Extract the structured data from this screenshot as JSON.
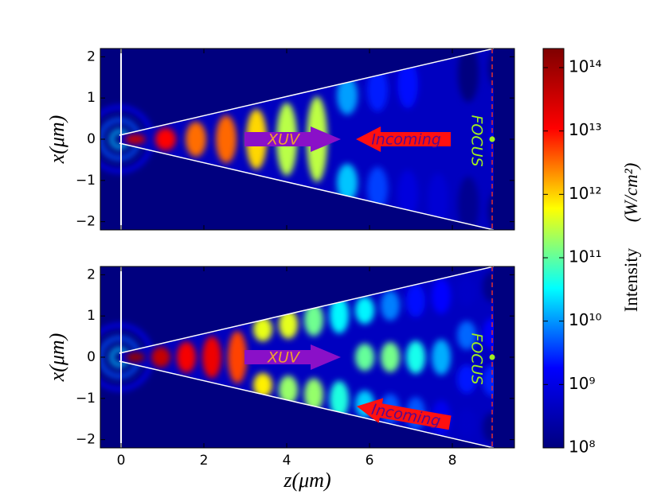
{
  "chart_data": [
    {
      "type": "heatmap",
      "ylabel": "x(μm)",
      "xlim": [
        -0.5,
        9.5
      ],
      "ylim": [
        -2.2,
        2.2
      ],
      "xticks": [
        0,
        2,
        4,
        6,
        8
      ],
      "yticks": [
        {
          "value": -2,
          "label": "−2"
        },
        {
          "value": -1,
          "label": "−1"
        },
        0,
        1,
        2
      ],
      "annotations": [
        "XUV",
        "Incoming",
        "FOCUS"
      ]
    },
    {
      "type": "heatmap",
      "ylabel": "x(μm)",
      "xlabel": "z(μm)",
      "xlim": [
        -0.5,
        9.5
      ],
      "ylim": [
        -2.2,
        2.2
      ],
      "xticks": [
        0,
        2,
        4,
        6,
        8
      ],
      "yticks": [
        {
          "value": -2,
          "label": "−2"
        },
        {
          "value": -1,
          "label": "−1"
        },
        0,
        1,
        2
      ],
      "annotations": [
        "XUV",
        "Incoming",
        "FOCUS"
      ]
    },
    {
      "type": "colorbar",
      "label": "Intensity",
      "unit": "(W/cm²)",
      "log_scale": true,
      "colormap": [
        "#00007f",
        "#0000ff",
        "#00ffff",
        "#ffff00",
        "#ff0000",
        "#7f0000"
      ],
      "ylim": [
        100000000,
        200000000000000
      ],
      "yticks": [
        {
          "value": 100000000,
          "label": "10⁸"
        },
        {
          "value": 1000000000,
          "label": "10⁹"
        },
        {
          "value": 10000000000,
          "label": "10¹⁰"
        },
        {
          "value": 100000000000,
          "label": "10¹¹"
        },
        {
          "value": 1000000000000,
          "label": "10¹²"
        },
        {
          "value": 10000000000000,
          "label": "10¹³"
        },
        {
          "value": 100000000000000,
          "label": "10¹⁴"
        }
      ]
    }
  ]
}
